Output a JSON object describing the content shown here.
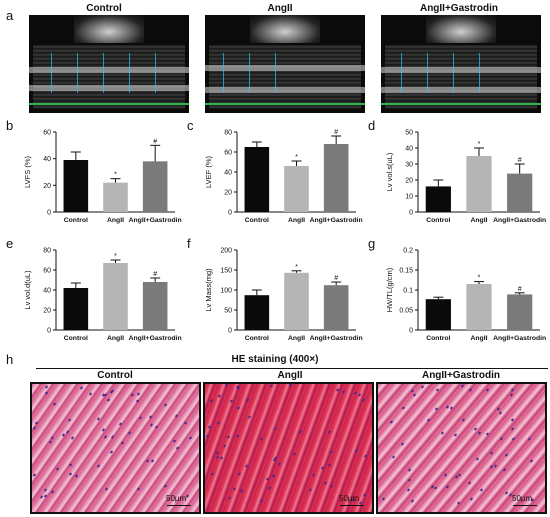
{
  "panel_letters": {
    "a": "a",
    "b": "b",
    "c": "c",
    "d": "d",
    "e": "e",
    "f": "f",
    "g": "g",
    "h": "h"
  },
  "echo_titles": [
    "Control",
    "AngII",
    "AngII+Gastrodin"
  ],
  "histology": {
    "header": "HE staining (400×)",
    "labels": [
      "Control",
      "AngII",
      "AngII+Gastrodin"
    ],
    "scale": "50μm"
  },
  "colors": {
    "control": "#0a0a0a",
    "angii": "#b5b5b5",
    "gastrodin": "#7a7a7a"
  },
  "chart_data": [
    {
      "id": "b",
      "type": "bar",
      "ylabel": "LVFS (%)",
      "ylim": [
        0,
        60
      ],
      "yticks": [
        0,
        20,
        40,
        60
      ],
      "categories": [
        "Control",
        "AngII",
        "AngII+Gastrodin"
      ],
      "values": [
        39,
        22,
        38
      ],
      "errors": [
        6,
        3,
        12
      ],
      "markers": [
        "",
        "*",
        "#"
      ]
    },
    {
      "id": "c",
      "type": "bar",
      "ylabel": "LVEF (%)",
      "ylim": [
        0,
        80
      ],
      "yticks": [
        0,
        20,
        40,
        60,
        80
      ],
      "categories": [
        "Control",
        "AngII",
        "AngII+Gastrodin"
      ],
      "values": [
        65,
        46,
        68
      ],
      "errors": [
        5,
        5,
        8
      ],
      "markers": [
        "",
        "*",
        "#"
      ]
    },
    {
      "id": "d",
      "type": "bar",
      "ylabel": "Lv vol.s(uL)",
      "ylim": [
        0,
        50
      ],
      "yticks": [
        0,
        10,
        20,
        30,
        40,
        50
      ],
      "categories": [
        "Control",
        "AngII",
        "AngII+Gastrodin"
      ],
      "values": [
        16,
        35,
        24
      ],
      "errors": [
        4,
        5,
        6
      ],
      "markers": [
        "",
        "*",
        "#"
      ]
    },
    {
      "id": "e",
      "type": "bar",
      "ylabel": "Lv vol.d(uL)",
      "ylim": [
        0,
        80
      ],
      "yticks": [
        0,
        20,
        40,
        60,
        80
      ],
      "categories": [
        "Control",
        "AngII",
        "AngII+Gastrodin"
      ],
      "values": [
        42,
        67,
        48
      ],
      "errors": [
        5,
        3,
        4
      ],
      "markers": [
        "",
        "*",
        "#"
      ]
    },
    {
      "id": "f",
      "type": "bar",
      "ylabel": "Lv Mass(mg)",
      "ylim": [
        0,
        200
      ],
      "yticks": [
        0,
        50,
        100,
        150,
        200
      ],
      "categories": [
        "Control",
        "AngII",
        "AngII+Gastrodin"
      ],
      "values": [
        87,
        143,
        112
      ],
      "errors": [
        13,
        5,
        8
      ],
      "markers": [
        "",
        "*",
        "#"
      ]
    },
    {
      "id": "g",
      "type": "bar",
      "ylabel": "HW/TL(g/cm)",
      "ylim": [
        0,
        0.2
      ],
      "yticks": [
        0,
        0.05,
        0.1,
        0.15,
        0.2
      ],
      "categories": [
        "Control",
        "AngII",
        "AngII+Gastrodin"
      ],
      "values": [
        0.077,
        0.115,
        0.089
      ],
      "errors": [
        0.005,
        0.006,
        0.004
      ],
      "markers": [
        "",
        "*",
        "#"
      ]
    }
  ]
}
